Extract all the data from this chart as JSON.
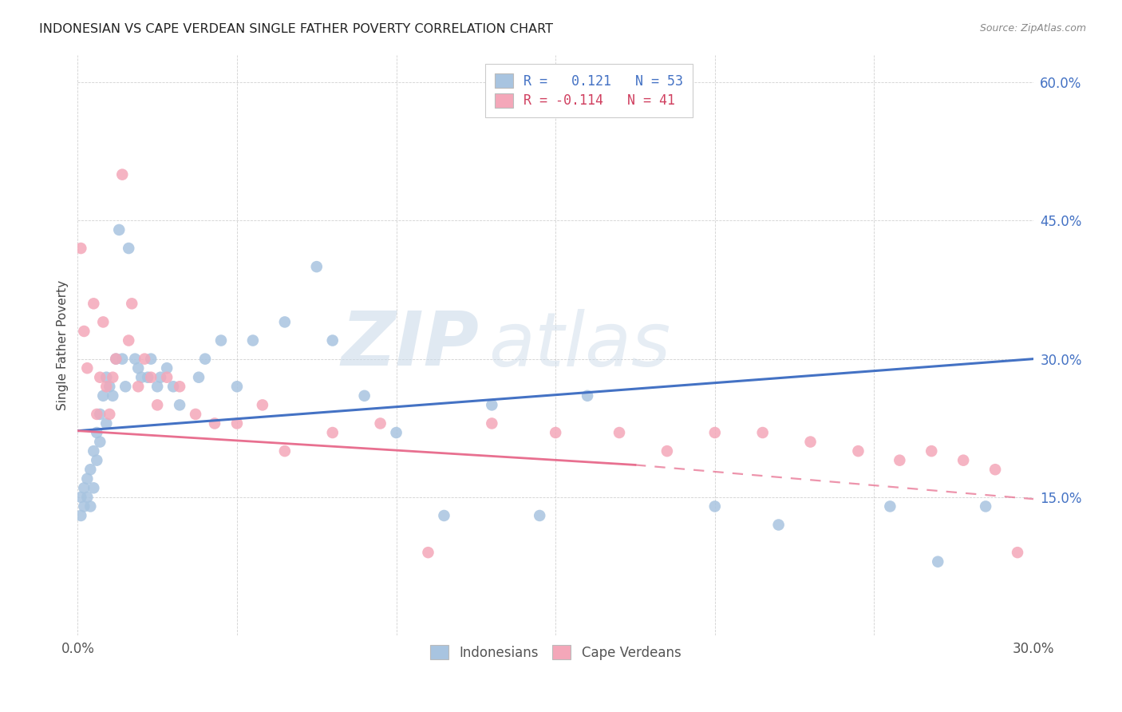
{
  "title": "INDONESIAN VS CAPE VERDEAN SINGLE FATHER POVERTY CORRELATION CHART",
  "source": "Source: ZipAtlas.com",
  "ylabel": "Single Father Poverty",
  "x_min": 0.0,
  "x_max": 0.3,
  "y_min": 0.0,
  "y_max": 0.63,
  "x_ticks": [
    0.0,
    0.05,
    0.1,
    0.15,
    0.2,
    0.25,
    0.3
  ],
  "x_tick_labels": [
    "0.0%",
    "",
    "",
    "",
    "",
    "",
    "30.0%"
  ],
  "y_ticks": [
    0.0,
    0.15,
    0.3,
    0.45,
    0.6
  ],
  "y_tick_labels": [
    "",
    "15.0%",
    "30.0%",
    "45.0%",
    "60.0%"
  ],
  "indonesian_color": "#a8c4e0",
  "cape_verdean_color": "#f4a7b9",
  "indonesian_line_color": "#4472c4",
  "cape_verdean_line_color": "#e87090",
  "R_indonesian": 0.121,
  "N_indonesian": 53,
  "R_cape_verdean": -0.114,
  "N_cape_verdean": 41,
  "watermark_zip": "ZIP",
  "watermark_atlas": "atlas",
  "indo_line_start_y": 0.222,
  "indo_line_end_y": 0.3,
  "cape_line_start_y": 0.222,
  "cape_line_solid_end_x": 0.175,
  "cape_line_solid_end_y": 0.185,
  "cape_line_dash_end_y": 0.148,
  "indonesian_x": [
    0.001,
    0.001,
    0.002,
    0.002,
    0.003,
    0.003,
    0.004,
    0.004,
    0.005,
    0.005,
    0.006,
    0.006,
    0.007,
    0.007,
    0.008,
    0.009,
    0.009,
    0.01,
    0.011,
    0.012,
    0.013,
    0.014,
    0.015,
    0.016,
    0.018,
    0.019,
    0.02,
    0.022,
    0.023,
    0.025,
    0.026,
    0.028,
    0.03,
    0.032,
    0.038,
    0.04,
    0.045,
    0.05,
    0.055,
    0.065,
    0.075,
    0.08,
    0.09,
    0.1,
    0.115,
    0.13,
    0.145,
    0.16,
    0.2,
    0.22,
    0.255,
    0.27,
    0.285
  ],
  "indonesian_y": [
    0.15,
    0.13,
    0.16,
    0.14,
    0.17,
    0.15,
    0.18,
    0.14,
    0.2,
    0.16,
    0.19,
    0.22,
    0.21,
    0.24,
    0.26,
    0.23,
    0.28,
    0.27,
    0.26,
    0.3,
    0.44,
    0.3,
    0.27,
    0.42,
    0.3,
    0.29,
    0.28,
    0.28,
    0.3,
    0.27,
    0.28,
    0.29,
    0.27,
    0.25,
    0.28,
    0.3,
    0.32,
    0.27,
    0.32,
    0.34,
    0.4,
    0.32,
    0.26,
    0.22,
    0.13,
    0.25,
    0.13,
    0.26,
    0.14,
    0.12,
    0.14,
    0.08,
    0.14
  ],
  "cape_verdean_x": [
    0.001,
    0.002,
    0.003,
    0.005,
    0.006,
    0.007,
    0.008,
    0.009,
    0.01,
    0.011,
    0.012,
    0.014,
    0.016,
    0.017,
    0.019,
    0.021,
    0.023,
    0.025,
    0.028,
    0.032,
    0.037,
    0.043,
    0.05,
    0.058,
    0.065,
    0.08,
    0.095,
    0.11,
    0.13,
    0.15,
    0.17,
    0.185,
    0.2,
    0.215,
    0.23,
    0.245,
    0.258,
    0.268,
    0.278,
    0.288,
    0.295
  ],
  "cape_verdean_y": [
    0.42,
    0.33,
    0.29,
    0.36,
    0.24,
    0.28,
    0.34,
    0.27,
    0.24,
    0.28,
    0.3,
    0.5,
    0.32,
    0.36,
    0.27,
    0.3,
    0.28,
    0.25,
    0.28,
    0.27,
    0.24,
    0.23,
    0.23,
    0.25,
    0.2,
    0.22,
    0.23,
    0.09,
    0.23,
    0.22,
    0.22,
    0.2,
    0.22,
    0.22,
    0.21,
    0.2,
    0.19,
    0.2,
    0.19,
    0.18,
    0.09
  ]
}
